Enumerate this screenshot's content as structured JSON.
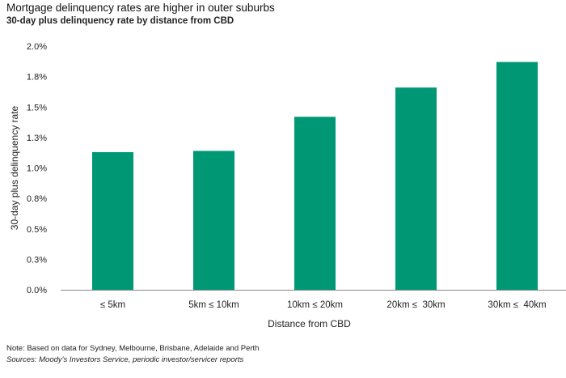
{
  "header": {
    "title": "Mortgage delinquency rates are higher in outer suburbs",
    "subtitle": "30-day plus delinquency rate by distance from CBD"
  },
  "footer": {
    "note": "Note: Based on data for Sydney, Melbourne, Brisbane, Adelaide and Perth",
    "sources": "Sources: Moody's Investors Service, periodic investor/servicer reports"
  },
  "chart_data": {
    "type": "bar",
    "title": "Mortgage delinquency rates are higher in outer suburbs",
    "subtitle": "30-day plus delinquency rate by distance from CBD",
    "categories": [
      "≤ 5km",
      "5km ≤ 10km",
      "10km ≤ 20km",
      "20km ≤  30km",
      "30km ≤  40km"
    ],
    "values": [
      1.13,
      1.14,
      1.42,
      1.66,
      1.87
    ],
    "xlabel": "Distance from CBD",
    "ylabel": "30-day plus delinquency rate",
    "ylim": [
      0,
      2.0
    ],
    "yticks": [
      0.0,
      0.25,
      0.5,
      0.75,
      1.0,
      1.25,
      1.5,
      1.75,
      2.0
    ],
    "ytick_labels": [
      "0.0%",
      "0.3%",
      "0.5%",
      "0.8%",
      "1.0%",
      "1.3%",
      "1.5%",
      "1.8%",
      "2.0%"
    ],
    "grid": false,
    "colors": {
      "bar": "#009775",
      "axis": "#888888"
    }
  }
}
